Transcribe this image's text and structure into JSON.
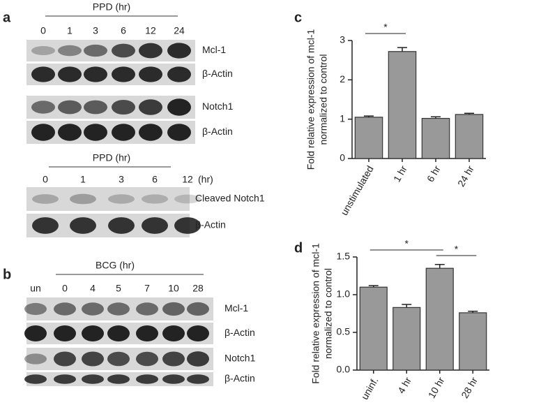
{
  "panel_a": {
    "label": "a",
    "blot1": {
      "header": "PPD (hr)",
      "lanes": [
        "0",
        "1",
        "3",
        "6",
        "12",
        "24"
      ],
      "rows": [
        "Mcl-1",
        "β-Actin",
        "Notch1",
        "β-Actin"
      ]
    },
    "blot2": {
      "header": "PPD (hr)",
      "lanes": [
        "0",
        "1",
        "3",
        "6",
        "12"
      ],
      "unit": "(hr)",
      "rows": [
        "Cleaved Notch1",
        "β-Actin"
      ]
    }
  },
  "panel_b": {
    "label": "b",
    "blot": {
      "header": "BCG (hr)",
      "lanes": [
        "un",
        "0",
        "4",
        "5",
        "7",
        "10",
        "28"
      ],
      "rows": [
        "Mcl-1",
        "β-Actin",
        "Notch1",
        "β-Actin"
      ]
    }
  },
  "chart_data": [
    {
      "type": "bar",
      "panel_label": "c",
      "y_label": [
        "Fold relative expression of mcl-1",
        "normalized to control"
      ],
      "categories": [
        "unstimulated",
        "1 hr",
        "6 hr",
        "24 hr"
      ],
      "values": [
        1.05,
        2.72,
        1.02,
        1.12
      ],
      "errors": [
        0.03,
        0.1,
        0.04,
        0.03
      ],
      "color": "#999999",
      "ylim": [
        0,
        3
      ],
      "yticks": [
        0,
        1,
        2,
        3
      ],
      "annotations": [
        "*"
      ]
    },
    {
      "type": "bar",
      "panel_label": "d",
      "y_label": [
        "Fold relative expression of mcl-1",
        "normalized to control"
      ],
      "categories": [
        "uninf.",
        "4 hr",
        "10 hr",
        "28 hr"
      ],
      "values": [
        1.1,
        0.83,
        1.35,
        0.76
      ],
      "errors": [
        0.02,
        0.04,
        0.05,
        0.02
      ],
      "color": "#999999",
      "ylim": [
        0,
        1.5
      ],
      "yticks": [
        {
          "value": 0,
          "label": "0.0"
        },
        0.5,
        {
          "value": 1,
          "label": "1.0"
        },
        {
          "value": 1.5,
          "label": "1.5"
        }
      ],
      "annotations": [
        "*",
        "*"
      ]
    }
  ]
}
